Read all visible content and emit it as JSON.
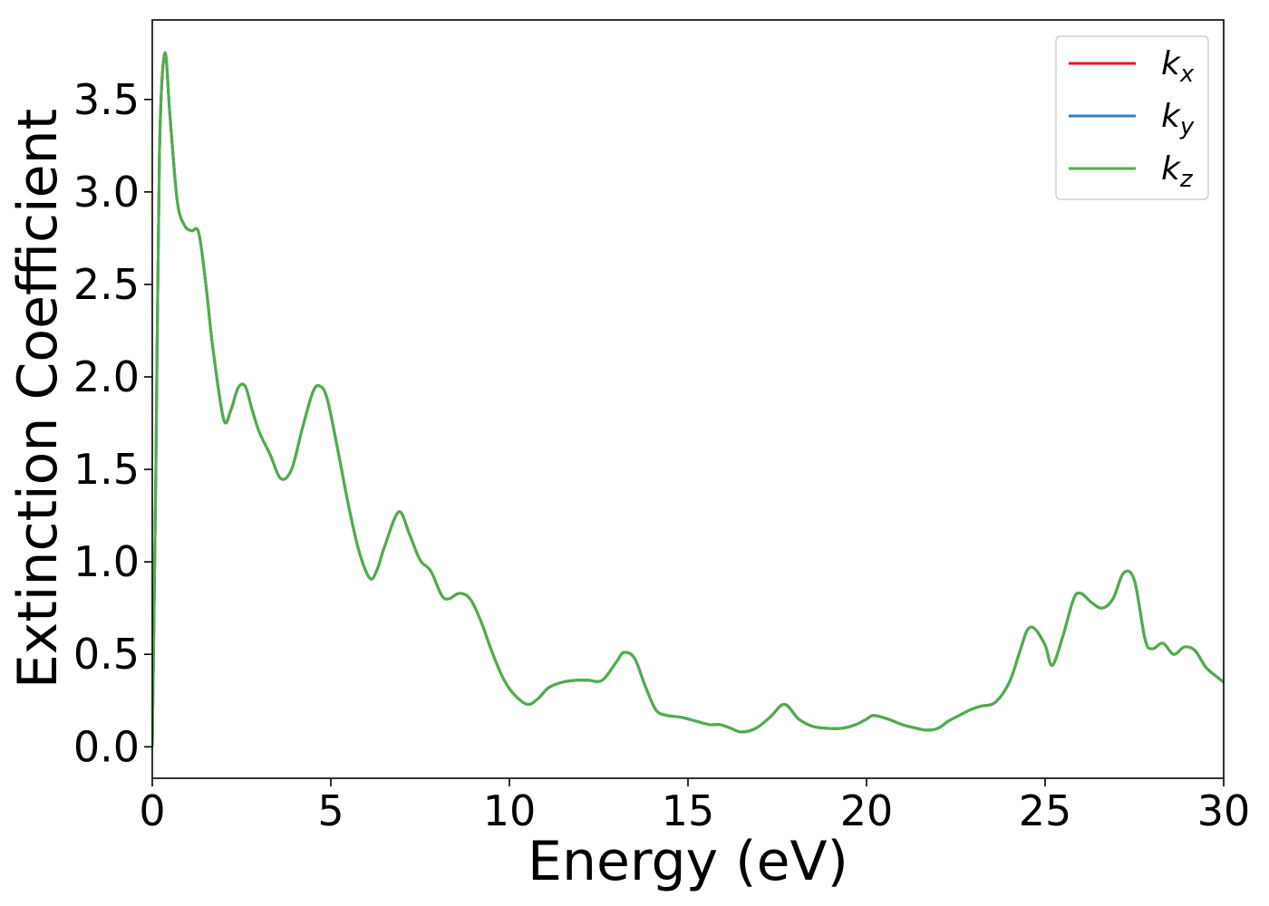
{
  "chart_data": {
    "type": "line",
    "xlabel": "Energy (eV)",
    "ylabel": "Extinction Coefficient",
    "xlim": [
      0,
      30
    ],
    "ylim": [
      -0.17,
      3.93
    ],
    "xticks": [
      0,
      5,
      10,
      15,
      20,
      25,
      30
    ],
    "xtick_labels": [
      "0",
      "5",
      "10",
      "15",
      "20",
      "25",
      "30"
    ],
    "yticks": [
      0.0,
      0.5,
      1.0,
      1.5,
      2.0,
      2.5,
      3.0,
      3.5
    ],
    "ytick_labels": [
      "0.0",
      "0.5",
      "1.0",
      "1.5",
      "2.0",
      "2.5",
      "3.0",
      "3.5"
    ],
    "grid": false,
    "legend_position": "top-right",
    "x": [
      0,
      0.1,
      0.2,
      0.35,
      0.5,
      0.7,
      0.9,
      1.1,
      1.3,
      1.5,
      1.7,
      2.0,
      2.2,
      2.4,
      2.6,
      2.8,
      3.0,
      3.3,
      3.6,
      3.9,
      4.2,
      4.5,
      4.7,
      4.9,
      5.2,
      5.5,
      5.8,
      6.1,
      6.3,
      6.5,
      6.9,
      7.2,
      7.5,
      7.8,
      8.1,
      8.3,
      8.6,
      8.9,
      9.2,
      9.5,
      9.8,
      10.1,
      10.5,
      10.8,
      11.1,
      11.5,
      11.9,
      12.2,
      12.6,
      13.0,
      13.2,
      13.5,
      13.8,
      14.1,
      14.4,
      14.8,
      15.2,
      15.6,
      15.9,
      16.2,
      16.5,
      16.9,
      17.3,
      17.7,
      18.1,
      18.5,
      18.9,
      19.3,
      19.7,
      20.0,
      20.2,
      20.6,
      21.0,
      21.4,
      21.7,
      22.0,
      22.3,
      22.6,
      22.9,
      23.2,
      23.6,
      24.0,
      24.3,
      24.5,
      24.7,
      25.0,
      25.2,
      25.5,
      25.8,
      26.0,
      26.3,
      26.6,
      26.9,
      27.2,
      27.5,
      27.8,
      28.0,
      28.3,
      28.6,
      28.9,
      29.2,
      29.5,
      29.8,
      30.0
    ],
    "series": [
      {
        "name": "k_x",
        "label_base": "k",
        "label_sub": "x",
        "color": "#e41a1c"
      },
      {
        "name": "k_y",
        "label_base": "k",
        "label_sub": "y",
        "color": "#377eb8"
      },
      {
        "name": "k_z",
        "label_base": "k",
        "label_sub": "z",
        "color": "#4daf4a"
      }
    ],
    "values": [
      0.0,
      1.5,
      3.2,
      3.75,
      3.4,
      2.95,
      2.82,
      2.79,
      2.78,
      2.5,
      2.15,
      1.77,
      1.82,
      1.94,
      1.95,
      1.82,
      1.7,
      1.58,
      1.45,
      1.5,
      1.72,
      1.92,
      1.95,
      1.88,
      1.6,
      1.3,
      1.05,
      0.91,
      0.96,
      1.08,
      1.27,
      1.15,
      1.01,
      0.95,
      0.82,
      0.8,
      0.83,
      0.8,
      0.68,
      0.52,
      0.38,
      0.29,
      0.23,
      0.26,
      0.32,
      0.35,
      0.36,
      0.36,
      0.36,
      0.46,
      0.51,
      0.48,
      0.33,
      0.2,
      0.17,
      0.16,
      0.14,
      0.12,
      0.12,
      0.1,
      0.08,
      0.1,
      0.16,
      0.23,
      0.15,
      0.11,
      0.1,
      0.1,
      0.12,
      0.15,
      0.17,
      0.15,
      0.12,
      0.1,
      0.09,
      0.1,
      0.14,
      0.17,
      0.2,
      0.22,
      0.24,
      0.35,
      0.52,
      0.63,
      0.64,
      0.55,
      0.44,
      0.6,
      0.8,
      0.83,
      0.78,
      0.75,
      0.8,
      0.94,
      0.9,
      0.58,
      0.53,
      0.56,
      0.5,
      0.54,
      0.52,
      0.43,
      0.38,
      0.35
    ]
  }
}
